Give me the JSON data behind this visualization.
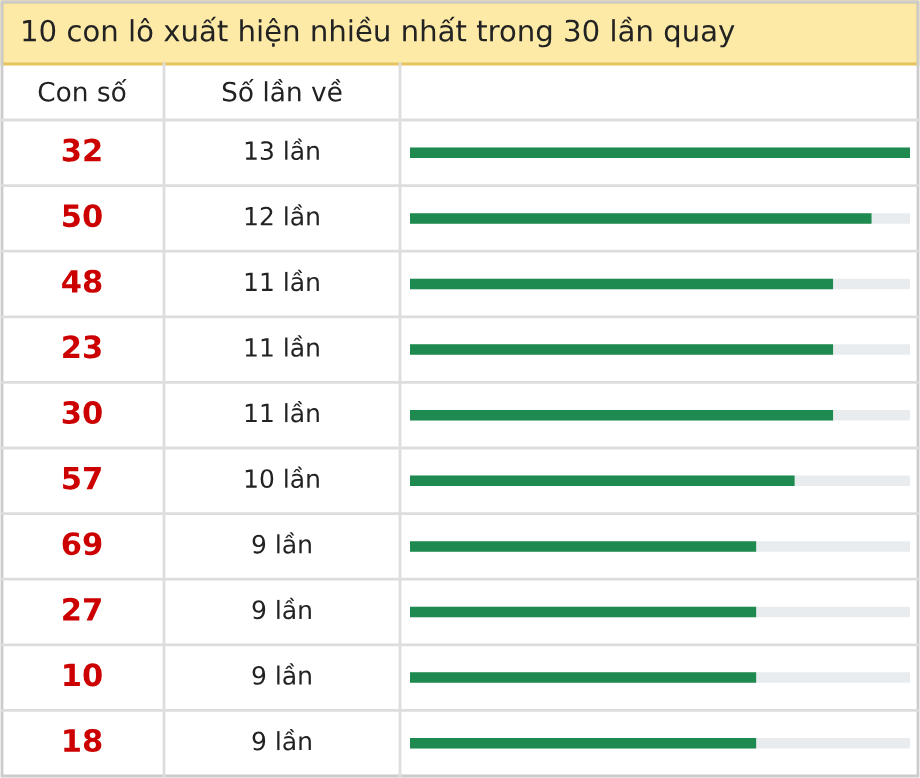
{
  "chart_data": {
    "type": "bar",
    "orientation": "horizontal",
    "title": "10 con lô xuất hiện nhiều nhất trong 30 lần quay",
    "ylabel": "Con số",
    "xlabel": "Số lần về",
    "categories": [
      "32",
      "50",
      "48",
      "23",
      "30",
      "57",
      "69",
      "27",
      "10",
      "18"
    ],
    "values": [
      13,
      12,
      11,
      11,
      11,
      10,
      9,
      9,
      9,
      9
    ],
    "value_labels": [
      "13 lần",
      "12 lần",
      "11 lần",
      "11 lần",
      "11 lần",
      "10 lần",
      "9 lần",
      "9 lần",
      "9 lần",
      "9 lần"
    ],
    "color": "#1e8a4f"
  }
}
